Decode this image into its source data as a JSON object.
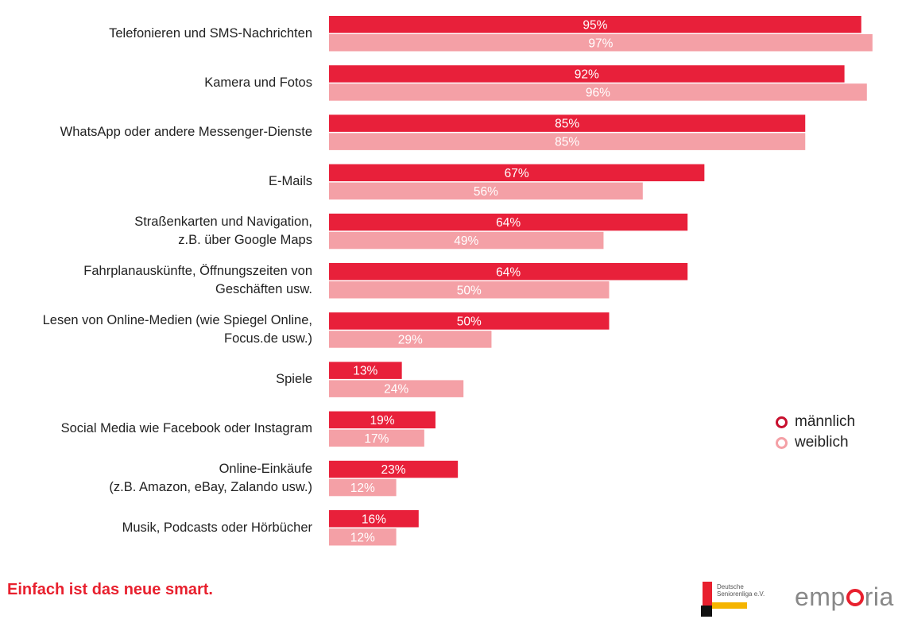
{
  "chart_data": {
    "type": "bar",
    "orientation": "horizontal",
    "categories": [
      [
        "Telefonieren und SMS-Nachrichten"
      ],
      [
        "Kamera und Fotos"
      ],
      [
        "WhatsApp oder andere Messenger-Dienste"
      ],
      [
        "E-Mails"
      ],
      [
        "Straßenkarten und Navigation,",
        "z.B. über Google Maps"
      ],
      [
        "Fahrplanauskünfte, Öffnungszeiten von",
        "Geschäften usw."
      ],
      [
        "Lesen von Online-Medien (wie Spiegel Online,",
        "Focus.de usw.)"
      ],
      [
        "Spiele"
      ],
      [
        "Social Media wie Facebook oder Instagram"
      ],
      [
        "Online-Einkäufe",
        "(z.B. Amazon, eBay, Zalando usw.)"
      ],
      [
        "Musik, Podcasts oder Hörbücher"
      ]
    ],
    "series": [
      {
        "name": "männlich",
        "color": "#e8203a",
        "values": [
          95,
          92,
          85,
          67,
          64,
          64,
          50,
          13,
          19,
          23,
          16
        ]
      },
      {
        "name": "weiblich",
        "color": "#f4a0a6",
        "values": [
          97,
          96,
          85,
          56,
          49,
          50,
          29,
          24,
          17,
          12,
          12
        ]
      }
    ],
    "value_suffix": "%",
    "xlim": [
      0,
      100
    ],
    "legend": "right"
  },
  "footer": {
    "tagline": "Einfach ist das neue smart.",
    "logo_dsl_line1": "Deutsche",
    "logo_dsl_line2": "Seniorenliga e.V.",
    "logo_emporia_pre": "emp",
    "logo_emporia_post": "ria"
  }
}
